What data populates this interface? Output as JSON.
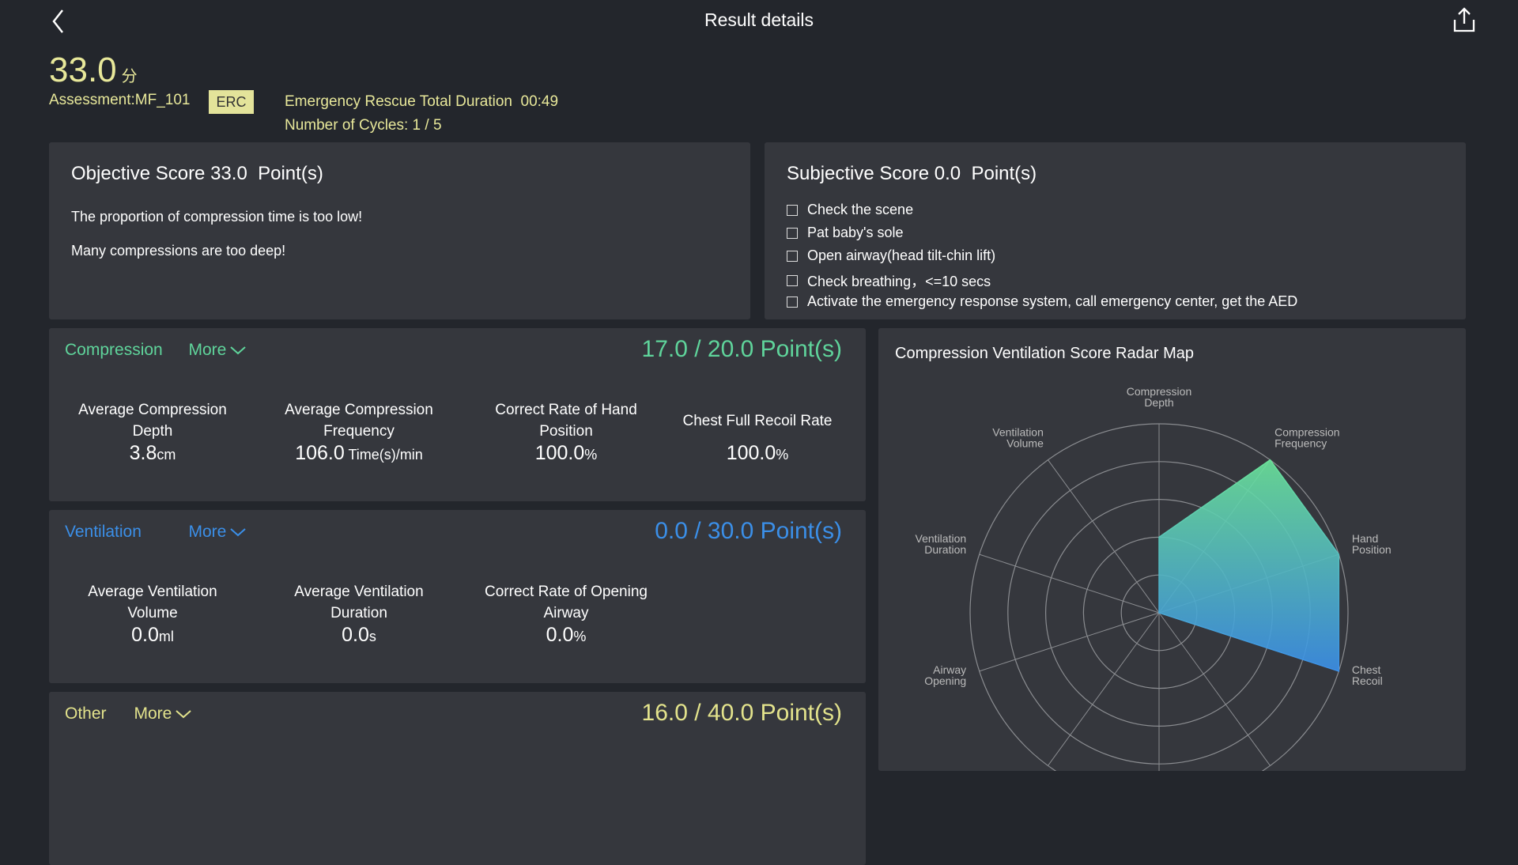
{
  "header": {
    "title": "Result details"
  },
  "summary": {
    "score": "33.0",
    "score_unit": "分",
    "assessment": "Assessment:MF_101",
    "badge": "ERC",
    "duration": "Emergency Rescue Total Duration  00:49",
    "cycles": "Number of Cycles: 1 / 5"
  },
  "objective": {
    "title": "Objective Score 33.0  Point(s)",
    "messages": [
      "The proportion of compression time is too low!",
      "Many compressions are too deep!"
    ]
  },
  "subjective": {
    "title": "Subjective Score 0.0  Point(s)",
    "items": [
      "Check the scene",
      "Pat baby's sole",
      "Open airway(head tilt-chin lift)",
      "Check breathing，<=10 secs",
      "Activate the emergency response system, call emergency center, get the AED"
    ]
  },
  "sections": [
    {
      "name": "Compression",
      "more": "More",
      "score": "17.0 / 20.0 Point(s)",
      "color": "#5fd49b",
      "metrics": [
        {
          "label": "Average Compression Depth",
          "value": "3.8",
          "unit": "cm"
        },
        {
          "label": "Average Compression Frequency",
          "value": "106.0",
          "unit": " Time(s)/min"
        },
        {
          "label": "Correct Rate of Hand Position",
          "value": "100.0",
          "unit": "%"
        },
        {
          "label": "Chest Full Recoil Rate",
          "value": "100.0",
          "unit": "%"
        }
      ]
    },
    {
      "name": "Ventilation",
      "more": "More",
      "score": "0.0 / 30.0 Point(s)",
      "color": "#3b8fe8",
      "metrics": [
        {
          "label": "Average Ventilation Volume",
          "value": "0.0",
          "unit": "ml"
        },
        {
          "label": "Average Ventilation Duration",
          "value": "0.0",
          "unit": "s"
        },
        {
          "label": "Correct Rate of Opening Airway",
          "value": "0.0",
          "unit": "%"
        }
      ]
    },
    {
      "name": "Other",
      "more": "More",
      "score": "16.0 / 40.0 Point(s)",
      "color": "#e3e38c",
      "metrics": []
    }
  ],
  "chart_data": {
    "type": "radar",
    "title": "Compression Ventilation Score Radar Map",
    "categories": [
      "Compression Depth",
      "Compression Frequency",
      "Hand Position",
      "Chest Recoil",
      null,
      null,
      null,
      "Airway Opening",
      "Ventilation Duration",
      "Ventilation Volume"
    ],
    "values": [
      40,
      100,
      100,
      100,
      0,
      0,
      0,
      0,
      0,
      0
    ],
    "rlim": [
      0,
      100
    ],
    "rticks": [
      20,
      40,
      60,
      80,
      100
    ],
    "color_from": "#6be39a",
    "color_to": "#3b8fe8"
  }
}
